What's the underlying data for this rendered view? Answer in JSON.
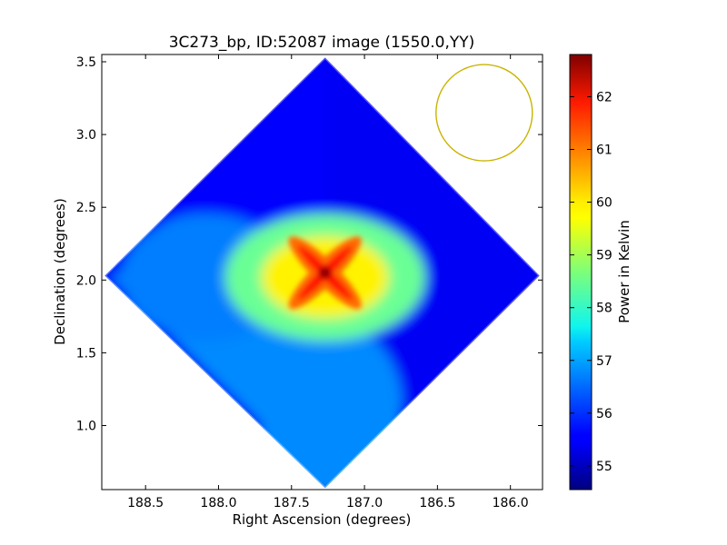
{
  "chart_data": {
    "type": "heatmap",
    "title": "3C273_bp, ID:52087 image (1550.0,YY)",
    "xlabel": "Right Ascension (degrees)",
    "ylabel": "Declination (degrees)",
    "colorbar_label": "Power in Kelvin",
    "xlim": [
      188.8,
      185.78
    ],
    "ylim": [
      0.56,
      3.55
    ],
    "x_ticks": [
      {
        "value": 188.5,
        "label": "188.5"
      },
      {
        "value": 188.0,
        "label": "188.0"
      },
      {
        "value": 187.5,
        "label": "187.5"
      },
      {
        "value": 187.0,
        "label": "187.0"
      },
      {
        "value": 186.5,
        "label": "186.5"
      },
      {
        "value": 186.0,
        "label": "186.0"
      }
    ],
    "y_ticks": [
      {
        "value": 1.0,
        "label": "1.0"
      },
      {
        "value": 1.5,
        "label": "1.5"
      },
      {
        "value": 2.0,
        "label": "2.0"
      },
      {
        "value": 2.5,
        "label": "2.5"
      },
      {
        "value": 3.0,
        "label": "3.0"
      },
      {
        "value": 3.5,
        "label": "3.5"
      }
    ],
    "colorbar": {
      "min": 54.55,
      "max": 62.8,
      "colormap": "jet",
      "ticks": [
        {
          "value": 55,
          "label": "55"
        },
        {
          "value": 56,
          "label": "56"
        },
        {
          "value": 57,
          "label": "57"
        },
        {
          "value": 58,
          "label": "58"
        },
        {
          "value": 59,
          "label": "59"
        },
        {
          "value": 60,
          "label": "60"
        },
        {
          "value": 61,
          "label": "61"
        },
        {
          "value": 62,
          "label": "62"
        }
      ]
    },
    "footprint_corners_deg": [
      [
        187.27,
        3.53
      ],
      [
        185.8,
        2.03
      ],
      [
        187.27,
        0.57
      ],
      [
        188.78,
        2.03
      ]
    ],
    "peak": {
      "ra": 187.27,
      "dec": 2.05,
      "value": 62.6
    },
    "beam_circle": {
      "ra": 186.18,
      "dec": 3.15,
      "radius_ra_deg": 0.33,
      "color": "#c8b400"
    },
    "regions": [
      {
        "name": "north",
        "value": 55.6
      },
      {
        "name": "east",
        "value": 55.5
      },
      {
        "name": "west",
        "value": 56.6
      },
      {
        "name": "south",
        "value": 56.7
      },
      {
        "name": "central-cross",
        "value": 60.5
      }
    ]
  }
}
